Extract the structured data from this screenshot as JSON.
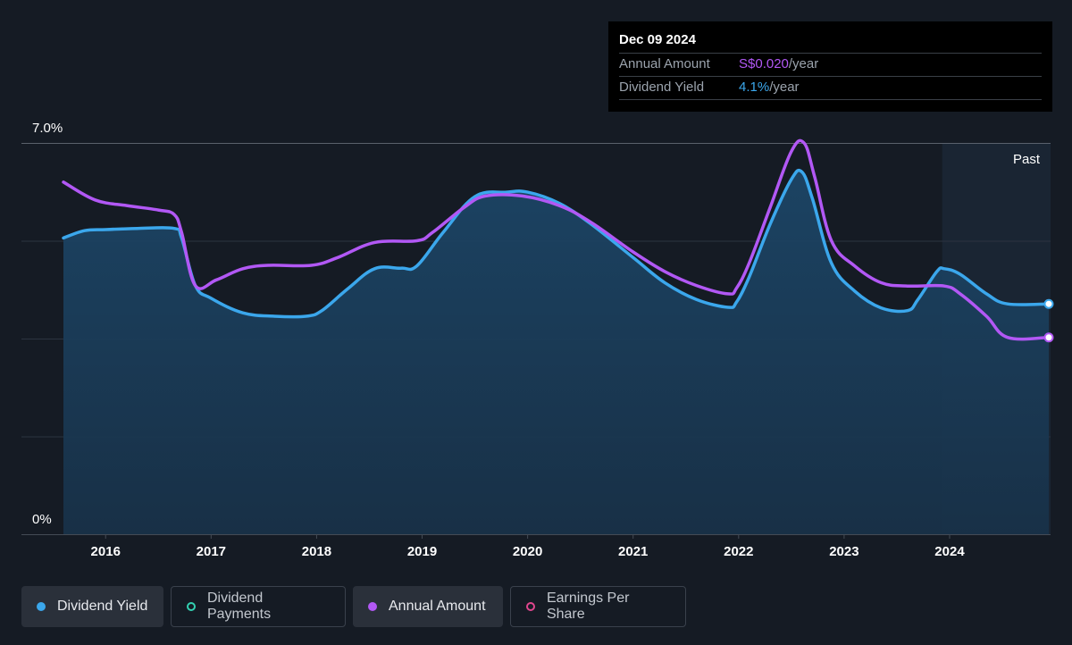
{
  "tooltip": {
    "date": "Dec 09 2024",
    "rows": [
      {
        "label": "Annual Amount",
        "value": "S$0.020",
        "unit": "/year"
      },
      {
        "label": "Dividend Yield",
        "value": "4.1%",
        "unit": "/year"
      }
    ]
  },
  "legend": [
    {
      "label": "Dividend Yield",
      "color": "#3ba7ec",
      "active": true
    },
    {
      "label": "Dividend Payments",
      "color": "#33d1b2",
      "active": false
    },
    {
      "label": "Annual Amount",
      "color": "#b258f5",
      "active": true
    },
    {
      "label": "Earnings Per Share",
      "color": "#e0468e",
      "active": false
    }
  ],
  "chart_data": {
    "type": "line",
    "ylim": [
      0,
      7.0
    ],
    "xlim": [
      2015.6,
      2024.94
    ],
    "y_tick_labels": {
      "top": "7.0%",
      "bottom": "0%"
    },
    "x_ticks": [
      2016,
      2017,
      2018,
      2019,
      2020,
      2021,
      2022,
      2023,
      2024
    ],
    "past_label": "Past",
    "past_start": 2023.93,
    "series": [
      {
        "name": "Dividend Yield",
        "color": "#3ba7ec",
        "filled": true,
        "points": [
          [
            2015.6,
            5.3
          ],
          [
            2015.8,
            5.43
          ],
          [
            2016.0,
            5.45
          ],
          [
            2016.3,
            5.47
          ],
          [
            2016.65,
            5.47
          ],
          [
            2016.72,
            5.3
          ],
          [
            2016.85,
            4.45
          ],
          [
            2017.0,
            4.22
          ],
          [
            2017.3,
            3.96
          ],
          [
            2017.6,
            3.9
          ],
          [
            2017.9,
            3.9
          ],
          [
            2018.05,
            4.0
          ],
          [
            2018.3,
            4.4
          ],
          [
            2018.55,
            4.75
          ],
          [
            2018.8,
            4.76
          ],
          [
            2018.95,
            4.8
          ],
          [
            2019.2,
            5.4
          ],
          [
            2019.5,
            6.04
          ],
          [
            2019.8,
            6.12
          ],
          [
            2020.0,
            6.12
          ],
          [
            2020.3,
            5.92
          ],
          [
            2020.6,
            5.55
          ],
          [
            2021.0,
            4.95
          ],
          [
            2021.3,
            4.5
          ],
          [
            2021.6,
            4.2
          ],
          [
            2021.9,
            4.06
          ],
          [
            2021.98,
            4.15
          ],
          [
            2022.1,
            4.6
          ],
          [
            2022.3,
            5.55
          ],
          [
            2022.5,
            6.35
          ],
          [
            2022.6,
            6.48
          ],
          [
            2022.7,
            6.0
          ],
          [
            2022.88,
            4.85
          ],
          [
            2023.1,
            4.35
          ],
          [
            2023.35,
            4.05
          ],
          [
            2023.6,
            4.0
          ],
          [
            2023.7,
            4.2
          ],
          [
            2023.88,
            4.7
          ],
          [
            2023.95,
            4.75
          ],
          [
            2024.1,
            4.65
          ],
          [
            2024.35,
            4.3
          ],
          [
            2024.55,
            4.12
          ],
          [
            2024.94,
            4.12
          ]
        ]
      },
      {
        "name": "Annual Amount",
        "color": "#b258f5",
        "filled": false,
        "points": [
          [
            2015.6,
            6.3
          ],
          [
            2015.9,
            5.98
          ],
          [
            2016.2,
            5.88
          ],
          [
            2016.5,
            5.8
          ],
          [
            2016.65,
            5.72
          ],
          [
            2016.72,
            5.4
          ],
          [
            2016.85,
            4.45
          ],
          [
            2017.05,
            4.55
          ],
          [
            2017.3,
            4.75
          ],
          [
            2017.55,
            4.81
          ],
          [
            2017.95,
            4.81
          ],
          [
            2018.2,
            4.95
          ],
          [
            2018.55,
            5.22
          ],
          [
            2018.95,
            5.25
          ],
          [
            2019.1,
            5.4
          ],
          [
            2019.4,
            5.85
          ],
          [
            2019.6,
            6.05
          ],
          [
            2019.95,
            6.05
          ],
          [
            2020.3,
            5.88
          ],
          [
            2020.6,
            5.58
          ],
          [
            2021.0,
            5.05
          ],
          [
            2021.3,
            4.7
          ],
          [
            2021.6,
            4.45
          ],
          [
            2021.9,
            4.3
          ],
          [
            2021.98,
            4.4
          ],
          [
            2022.1,
            4.85
          ],
          [
            2022.3,
            5.85
          ],
          [
            2022.5,
            6.85
          ],
          [
            2022.62,
            7.0
          ],
          [
            2022.72,
            6.4
          ],
          [
            2022.88,
            5.25
          ],
          [
            2023.1,
            4.8
          ],
          [
            2023.35,
            4.5
          ],
          [
            2023.6,
            4.44
          ],
          [
            2023.95,
            4.44
          ],
          [
            2024.1,
            4.3
          ],
          [
            2024.35,
            3.9
          ],
          [
            2024.55,
            3.52
          ],
          [
            2024.94,
            3.52
          ]
        ]
      }
    ]
  }
}
